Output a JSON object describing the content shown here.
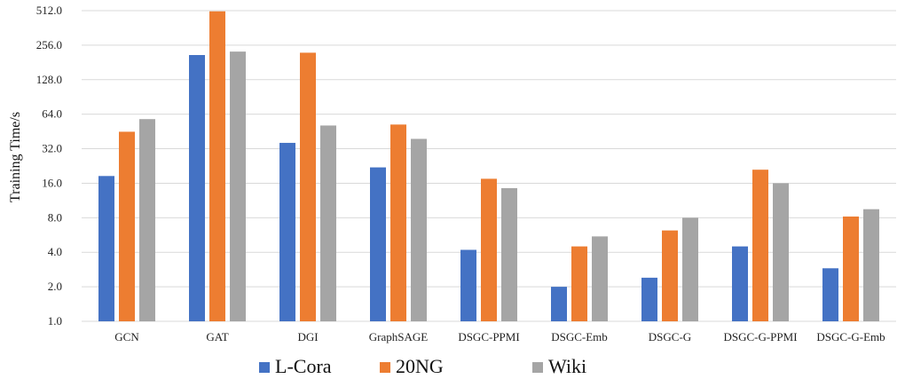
{
  "chart_data": {
    "type": "bar",
    "ylabel": "Training Time/s",
    "yscale": "log2",
    "ylim": [
      1.0,
      512.0
    ],
    "yticks": [
      "1.0",
      "2.0",
      "4.0",
      "8.0",
      "16.0",
      "32.0",
      "64.0",
      "128.0",
      "256.0",
      "512.0"
    ],
    "grid": true,
    "legend_position": "bottom",
    "categories": [
      "GCN",
      "GAT",
      "DGI",
      "GraphSAGE",
      "DSGC-PPMI",
      "DSGC-Emb",
      "DSGC-G",
      "DSGC-G-PPMI",
      "DSGC-G-Emb"
    ],
    "series": [
      {
        "name": "L-Cora",
        "color": "#4472C4",
        "values": [
          18.5,
          210,
          36,
          22,
          4.2,
          2.0,
          2.4,
          4.5,
          2.9
        ]
      },
      {
        "name": "20NG",
        "color": "#ED7D31",
        "values": [
          45,
          505,
          220,
          52,
          17.5,
          4.5,
          6.2,
          21,
          8.2
        ]
      },
      {
        "name": "Wiki",
        "color": "#A5A5A5",
        "values": [
          58,
          225,
          51,
          39,
          14.5,
          5.5,
          8.0,
          16,
          9.5
        ]
      }
    ]
  }
}
